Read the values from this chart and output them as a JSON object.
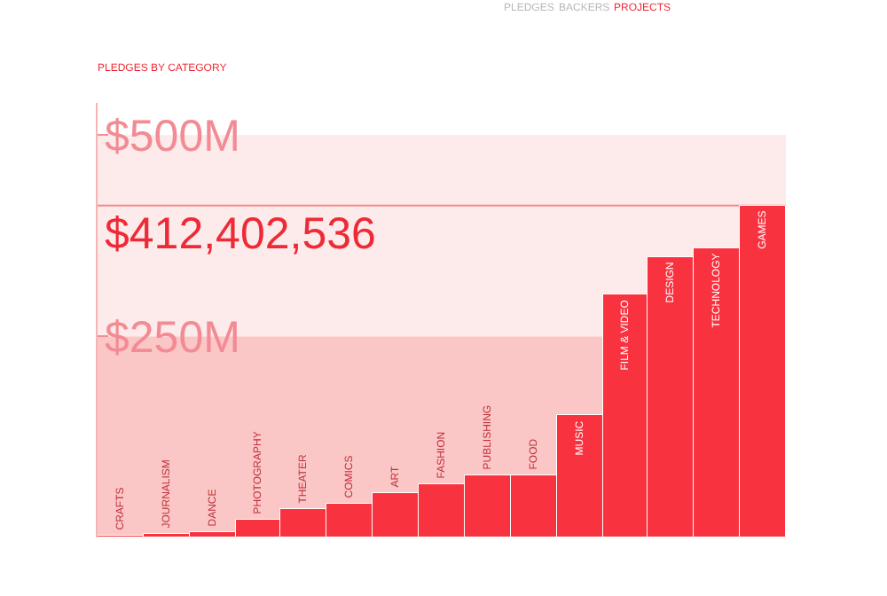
{
  "chart_data": {
    "type": "bar",
    "title": "PLEDGES BY CATEGORY",
    "annotations": [
      "PLEDGES",
      "BACKERS",
      "PROJECTS"
    ],
    "categories": [
      "CRAFTS",
      "JOURNALISM",
      "DANCE",
      "PHOTOGRAPHY",
      "THEATER",
      "COMICS",
      "ART",
      "FASHION",
      "PUBLISHING",
      "FOOD",
      "MUSIC",
      "FILM & VIDEO",
      "DESIGN",
      "TECHNOLOGY",
      "GAMES"
    ],
    "values": [
      3,
      5,
      6,
      21,
      35,
      42,
      56,
      67,
      78,
      78,
      153,
      302,
      349,
      360,
      412
    ],
    "color": "#f9323f",
    "ylim": [
      0,
      540
    ],
    "yticks": [
      {
        "value": 250,
        "label": "$250M"
      },
      {
        "value": 500,
        "label": "$500M"
      }
    ],
    "bands": [
      {
        "axis": "y",
        "from": 0,
        "to": 250,
        "color": "#fbc6c6"
      },
      {
        "axis": "y",
        "from": 250,
        "to": 500,
        "color": "#fdeaea"
      }
    ],
    "ref_lines": [
      {
        "axis": "y",
        "value": 412.402536,
        "label": "$412,402,536",
        "color": "#f08a8a"
      }
    ],
    "grid": false
  }
}
